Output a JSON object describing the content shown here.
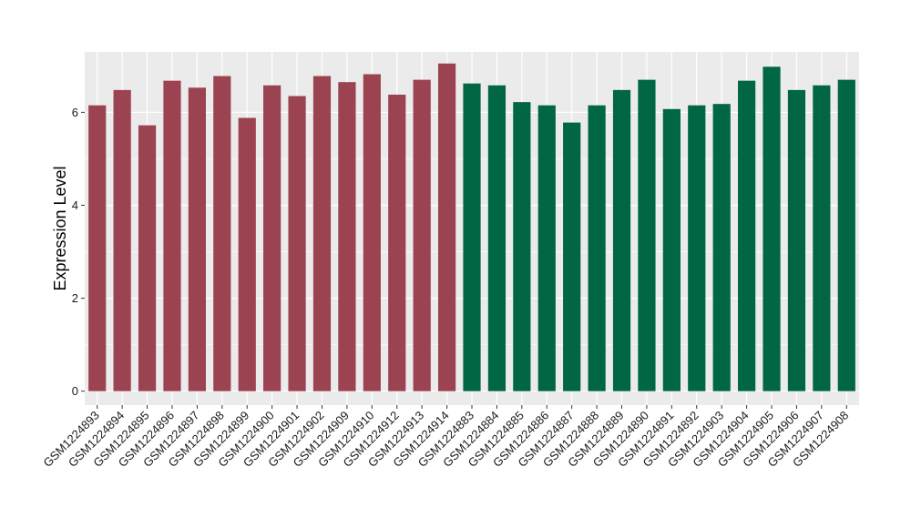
{
  "chart_data": {
    "type": "bar",
    "title": "",
    "xlabel": "",
    "ylabel": "Expression Level",
    "ylim": [
      -0.3,
      7.3
    ],
    "yticks": [
      0,
      2,
      4,
      6
    ],
    "grid": true,
    "legend": "none",
    "categories": [
      "GSM1224893",
      "GSM1224894",
      "GSM1224895",
      "GSM1224896",
      "GSM1224897",
      "GSM1224898",
      "GSM1224899",
      "GSM1224900",
      "GSM1224901",
      "GSM1224902",
      "GSM1224909",
      "GSM1224910",
      "GSM1224912",
      "GSM1224913",
      "GSM1224914",
      "GSM1224883",
      "GSM1224884",
      "GSM1224885",
      "GSM1224886",
      "GSM1224887",
      "GSM1224888",
      "GSM1224889",
      "GSM1224890",
      "GSM1224891",
      "GSM1224892",
      "GSM1224903",
      "GSM1224904",
      "GSM1224905",
      "GSM1224906",
      "GSM1224907",
      "GSM1224908"
    ],
    "values": [
      6.15,
      6.48,
      5.72,
      6.68,
      6.53,
      6.78,
      5.88,
      6.58,
      6.35,
      6.78,
      6.65,
      6.82,
      6.38,
      6.7,
      7.05,
      6.62,
      6.58,
      6.22,
      6.15,
      5.78,
      6.15,
      6.48,
      6.7,
      6.07,
      6.15,
      6.18,
      6.68,
      6.98,
      6.48,
      6.58,
      6.7
    ],
    "group_colors": [
      "#9b4350",
      "#9b4350",
      "#9b4350",
      "#9b4350",
      "#9b4350",
      "#9b4350",
      "#9b4350",
      "#9b4350",
      "#9b4350",
      "#9b4350",
      "#9b4350",
      "#9b4350",
      "#9b4350",
      "#9b4350",
      "#9b4350",
      "#006644",
      "#006644",
      "#006644",
      "#006644",
      "#006644",
      "#006644",
      "#006644",
      "#006644",
      "#006644",
      "#006644",
      "#006644",
      "#006644",
      "#006644",
      "#006644",
      "#006644",
      "#006644"
    ],
    "panel_background": "#ebebeb",
    "grid_color": "#ffffff"
  }
}
